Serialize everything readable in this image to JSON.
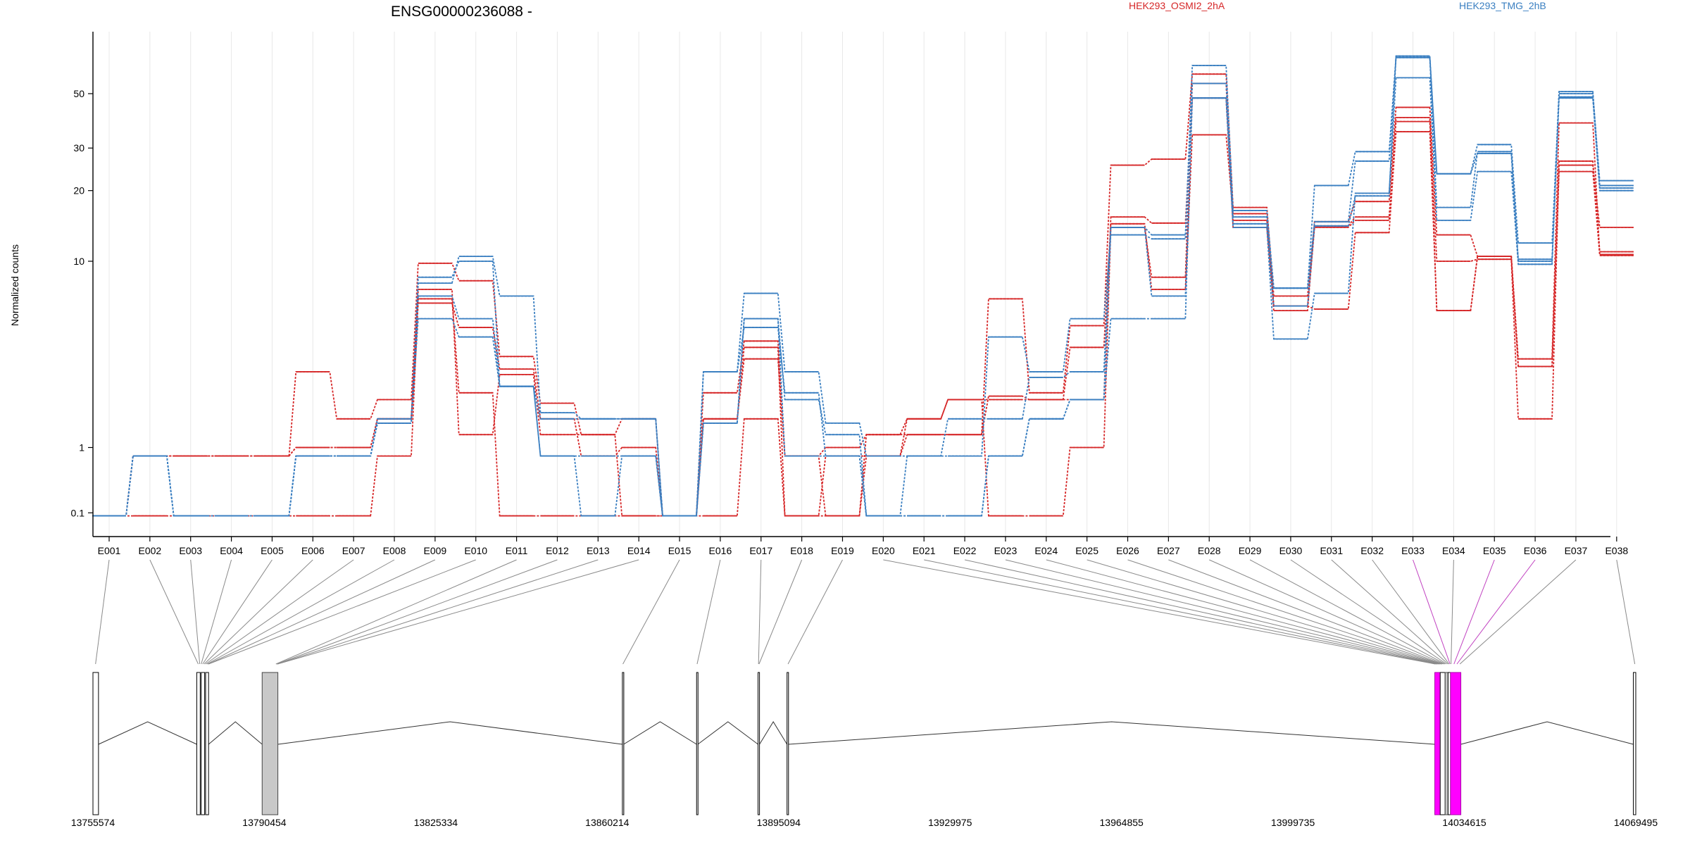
{
  "colors": {
    "osmi": "#d62728",
    "tmg": "#3a7fc1",
    "highlight": "#ff00ff",
    "gray_exon": "#c8c8c8"
  },
  "chart_data": {
    "type": "line",
    "title": "ENSG00000236088 -",
    "ylabel": "Normalized counts",
    "y_scale": "log1p",
    "y_ticks": [
      0.1,
      1,
      10,
      20,
      30,
      50
    ],
    "y_tick_labels": [
      "0.1",
      "1",
      "10",
      "20",
      "30",
      "50"
    ],
    "ylim": [
      0.07,
      90
    ],
    "grid": "vertical",
    "legend": "top",
    "legend_entries": [
      "HEK293_OSMI2_2hA",
      "HEK293_TMG_2hB"
    ],
    "categories": [
      "E001",
      "E002",
      "E003",
      "E004",
      "E005",
      "E006",
      "E007",
      "E008",
      "E009",
      "E010",
      "E011",
      "E012",
      "E013",
      "E014",
      "E015",
      "E016",
      "E017",
      "E018",
      "E019",
      "E020",
      "E021",
      "E022",
      "E023",
      "E024",
      "E025",
      "E026",
      "E027",
      "E028",
      "E029",
      "E030",
      "E031",
      "E032",
      "E033",
      "E034",
      "E035",
      "E036",
      "E037",
      "E038"
    ],
    "series": [
      {
        "group": "osmi",
        "values": [
          0.07,
          0.85,
          0.85,
          0.85,
          0.85,
          3.0,
          1.6,
          2.1,
          9.8,
          8.2,
          3.6,
          2.0,
          1.25,
          1.6,
          0.07,
          2.3,
          4.3,
          0.85,
          0.07,
          1.25,
          1.25,
          1.25,
          6.8,
          2.3,
          5.1,
          25.5,
          27.0,
          60.0,
          17.0,
          7.0,
          14.8,
          18.0,
          44.0,
          13.0,
          10.5,
          3.5,
          38.0,
          10.7
        ]
      },
      {
        "group": "osmi",
        "values": [
          0.07,
          0.85,
          0.85,
          0.85,
          0.85,
          1.0,
          1.0,
          1.6,
          6.5,
          5.0,
          3.1,
          1.6,
          0.85,
          1.0,
          0.07,
          1.6,
          3.5,
          0.85,
          1.0,
          1.25,
          1.6,
          2.1,
          2.1,
          2.1,
          2.1,
          15.5,
          14.6,
          48.0,
          15.0,
          6.0,
          14.2,
          15.5,
          38.5,
          10.0,
          10.2,
          1.6,
          25.5,
          14.0
        ]
      },
      {
        "group": "osmi",
        "values": [
          0.07,
          0.07,
          0.07,
          0.07,
          0.07,
          0.07,
          0.07,
          0.85,
          6.8,
          2.3,
          0.07,
          0.07,
          0.07,
          0.07,
          0.07,
          0.07,
          1.6,
          0.07,
          0.07,
          0.85,
          1.6,
          2.1,
          0.07,
          0.07,
          1.0,
          14.0,
          8.5,
          55.0,
          14.0,
          6.3,
          6.1,
          13.3,
          35.0,
          6.0,
          10.5,
          3.2,
          24.0,
          10.6
        ]
      },
      {
        "group": "osmi",
        "values": [
          0.07,
          0.85,
          0.85,
          0.85,
          0.85,
          1.0,
          1.0,
          1.6,
          7.5,
          1.25,
          2.9,
          1.25,
          1.25,
          0.07,
          0.07,
          1.6,
          4.0,
          0.07,
          0.85,
          0.85,
          1.25,
          1.25,
          2.2,
          2.1,
          4.0,
          14.5,
          7.5,
          34.0,
          16.0,
          6.3,
          14.0,
          15.0,
          40.0,
          6.0,
          10.5,
          3.2,
          26.5,
          11.0
        ]
      },
      {
        "group": "tmg",
        "values": [
          0.07,
          0.85,
          0.07,
          0.07,
          0.07,
          0.85,
          0.85,
          1.5,
          8.0,
          10.5,
          7.0,
          1.75,
          1.6,
          1.6,
          0.07,
          3.0,
          7.2,
          3.0,
          1.5,
          0.85,
          0.85,
          0.85,
          4.5,
          3.0,
          5.5,
          13.0,
          12.5,
          65.0,
          16.5,
          7.6,
          21.0,
          29.0,
          70.0,
          23.5,
          31.0,
          12.0,
          50.0,
          22.0
        ]
      },
      {
        "group": "tmg",
        "values": [
          0.07,
          0.85,
          0.07,
          0.07,
          0.07,
          0.85,
          0.85,
          1.6,
          7.0,
          5.5,
          2.5,
          1.6,
          1.6,
          1.6,
          0.07,
          1.5,
          5.5,
          2.1,
          1.25,
          0.07,
          0.85,
          1.6,
          1.6,
          2.8,
          3.0,
          14.0,
          13.0,
          55.0,
          15.5,
          7.6,
          14.8,
          26.5,
          70.0,
          17.0,
          29.0,
          10.2,
          51.0,
          21.0
        ]
      },
      {
        "group": "tmg",
        "values": [
          0.07,
          0.85,
          0.07,
          0.07,
          0.07,
          0.85,
          0.85,
          1.5,
          5.5,
          4.5,
          2.5,
          0.85,
          0.07,
          0.85,
          0.07,
          3.0,
          5.0,
          2.3,
          0.85,
          0.07,
          0.07,
          0.07,
          0.85,
          1.6,
          2.1,
          5.5,
          5.5,
          48.0,
          14.0,
          4.4,
          7.2,
          19.5,
          58.0,
          15.0,
          24.0,
          9.7,
          48.0,
          20.0
        ]
      },
      {
        "group": "tmg",
        "values": [
          0.07,
          0.85,
          0.07,
          0.07,
          0.07,
          0.85,
          0.85,
          1.5,
          8.5,
          10.0,
          2.5,
          0.85,
          0.85,
          0.85,
          0.07,
          1.5,
          5.5,
          0.85,
          0.85,
          0.07,
          0.07,
          0.07,
          0.85,
          1.6,
          2.1,
          14.0,
          7.0,
          48.0,
          14.5,
          6.3,
          14.2,
          19.0,
          71.0,
          23.5,
          28.5,
          10.0,
          48.5,
          20.5
        ]
      }
    ],
    "genome_ticks": [
      "13755574",
      "13790454",
      "13825334",
      "13860214",
      "13895094",
      "13929975",
      "13964855",
      "13999735",
      "14034615",
      "14069495"
    ],
    "genome_range": [
      13755574,
      14069495
    ],
    "exons": [
      {
        "start": 13755574,
        "end": 13756700,
        "style": "white"
      },
      {
        "start": 13776700,
        "end": 13777400,
        "style": "dark"
      },
      {
        "start": 13777600,
        "end": 13778300,
        "style": "dark"
      },
      {
        "start": 13778500,
        "end": 13779100,
        "style": "dark"
      },
      {
        "start": 13790000,
        "end": 13793200,
        "style": "gray"
      },
      {
        "start": 13863300,
        "end": 13863550,
        "style": "white"
      },
      {
        "start": 13878400,
        "end": 13878650,
        "style": "white"
      },
      {
        "start": 13890900,
        "end": 13891200,
        "style": "white"
      },
      {
        "start": 13896800,
        "end": 13897100,
        "style": "white"
      },
      {
        "start": 14028600,
        "end": 14029700,
        "style": "pink"
      },
      {
        "start": 14029700,
        "end": 14030700,
        "style": "dark"
      },
      {
        "start": 14030700,
        "end": 14031300,
        "style": "gray"
      },
      {
        "start": 14031300,
        "end": 14031800,
        "style": "dark"
      },
      {
        "start": 14031800,
        "end": 14033900,
        "style": "pink"
      },
      {
        "start": 14069000,
        "end": 14069495,
        "style": "white"
      }
    ],
    "introns": [
      [
        13756700,
        13776700
      ],
      [
        13779100,
        13790000
      ],
      [
        13793200,
        13863300
      ],
      [
        13863550,
        13878400
      ],
      [
        13878650,
        13890900
      ],
      [
        13891200,
        13896800
      ],
      [
        13897100,
        14028600
      ],
      [
        14033900,
        14069000
      ]
    ],
    "exon_genomic_anchor": [
      13756100,
      13777000,
      13777300,
      13777600,
      13777900,
      13778200,
      13778500,
      13778800,
      13779000,
      13779100,
      13792800,
      13793000,
      13793100,
      13793150,
      13863400,
      13878500,
      13891000,
      13891100,
      13897000,
      14028700,
      14028900,
      14029100,
      14029300,
      14029500,
      14029700,
      14029900,
      14030100,
      14030400,
      14030700,
      14031000,
      14031300,
      14031500,
      14031700,
      14031900,
      14032500,
      14033100,
      14033700,
      14069300
    ],
    "highlighted_exons": [
      "E033",
      "E035",
      "E036"
    ]
  }
}
